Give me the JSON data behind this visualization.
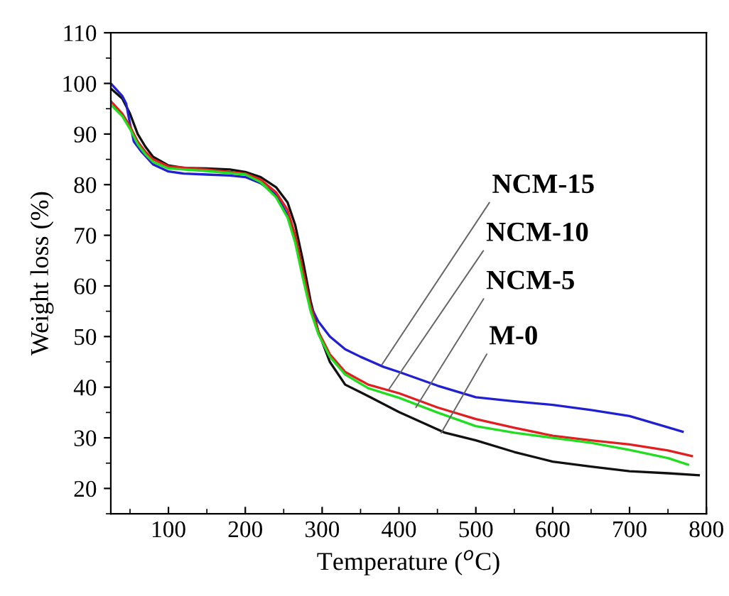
{
  "chart_data": {
    "type": "line",
    "xlabel": "Temperature ($^{o}$C)",
    "ylabel": "Weight loss (%)",
    "xlim": [
      25,
      800
    ],
    "xticks": [
      100,
      200,
      300,
      400,
      500,
      600,
      700,
      800
    ],
    "ylim": [
      15,
      110
    ],
    "yticks": [
      20,
      30,
      40,
      50,
      60,
      70,
      80,
      90,
      100,
      110
    ],
    "grid": false,
    "legend": false,
    "marker": "none",
    "line_style": "solid",
    "series": [
      {
        "color": "#111111",
        "x": [
          25,
          40,
          50,
          60,
          70,
          80,
          100,
          120,
          150,
          180,
          200,
          220,
          240,
          255,
          265,
          275,
          285,
          295,
          310,
          330,
          363,
          400,
          460,
          500,
          550,
          600,
          650,
          700,
          750,
          790
        ],
        "values": [
          99,
          97,
          94,
          90,
          87.5,
          85.5,
          83.8,
          83.3,
          83.2,
          83,
          82.5,
          81.5,
          79.5,
          76.5,
          72,
          65,
          57,
          51,
          45,
          40.5,
          38,
          35.1,
          31,
          29.5,
          27.2,
          25.3,
          24.3,
          23.4,
          23,
          22.6
        ]
      },
      {
        "color": "#2020d0",
        "x": [
          25,
          40,
          45,
          50,
          55,
          65,
          80,
          100,
          120,
          150,
          180,
          200,
          220,
          240,
          255,
          265,
          275,
          285,
          295,
          310,
          330,
          350,
          380,
          400,
          450,
          500,
          550,
          600,
          650,
          700,
          740,
          769
        ],
        "values": [
          100,
          97.5,
          96,
          92,
          88.5,
          86.5,
          84,
          82.6,
          82.2,
          82,
          81.8,
          81.5,
          80.3,
          78,
          74,
          69,
          62,
          56,
          53,
          50,
          47.5,
          46,
          44,
          43,
          40.3,
          38,
          37.2,
          36.5,
          35.5,
          34.3,
          32.5,
          31.2
        ]
      },
      {
        "color": "#e02020",
        "x": [
          25,
          40,
          50,
          60,
          70,
          80,
          100,
          150,
          200,
          220,
          240,
          255,
          265,
          275,
          285,
          295,
          310,
          330,
          360,
          400,
          450,
          500,
          550,
          600,
          650,
          700,
          750,
          781
        ],
        "values": [
          96.5,
          94,
          91.5,
          88.5,
          86.5,
          85,
          83.6,
          83,
          82.2,
          81,
          78.5,
          75,
          70,
          63,
          56,
          51,
          46.5,
          43,
          40.5,
          38.8,
          36,
          33.7,
          32,
          30.4,
          29.5,
          28.7,
          27.5,
          26.4
        ]
      },
      {
        "color": "#22dd22",
        "x": [
          25,
          40,
          50,
          60,
          70,
          80,
          100,
          150,
          200,
          220,
          240,
          255,
          265,
          275,
          285,
          295,
          310,
          330,
          360,
          400,
          450,
          500,
          550,
          600,
          650,
          700,
          750,
          776
        ],
        "values": [
          95.8,
          93.5,
          91,
          88,
          86,
          84.5,
          83.2,
          82.7,
          82,
          80.5,
          77.5,
          73.5,
          68.5,
          61.5,
          55,
          50.5,
          46,
          42.5,
          39.8,
          37.9,
          35,
          32.3,
          31,
          30,
          29,
          27.6,
          26,
          24.7
        ]
      }
    ],
    "annotations": [
      {
        "text": "NCM-15",
        "x": 378,
        "y": 44.5
      },
      {
        "text": "NCM-10",
        "x": 387,
        "y": 39.6
      },
      {
        "text": "NCM-5",
        "x": 422,
        "y": 36
      },
      {
        "text": "M-0",
        "x": 455,
        "y": 31
      }
    ]
  }
}
